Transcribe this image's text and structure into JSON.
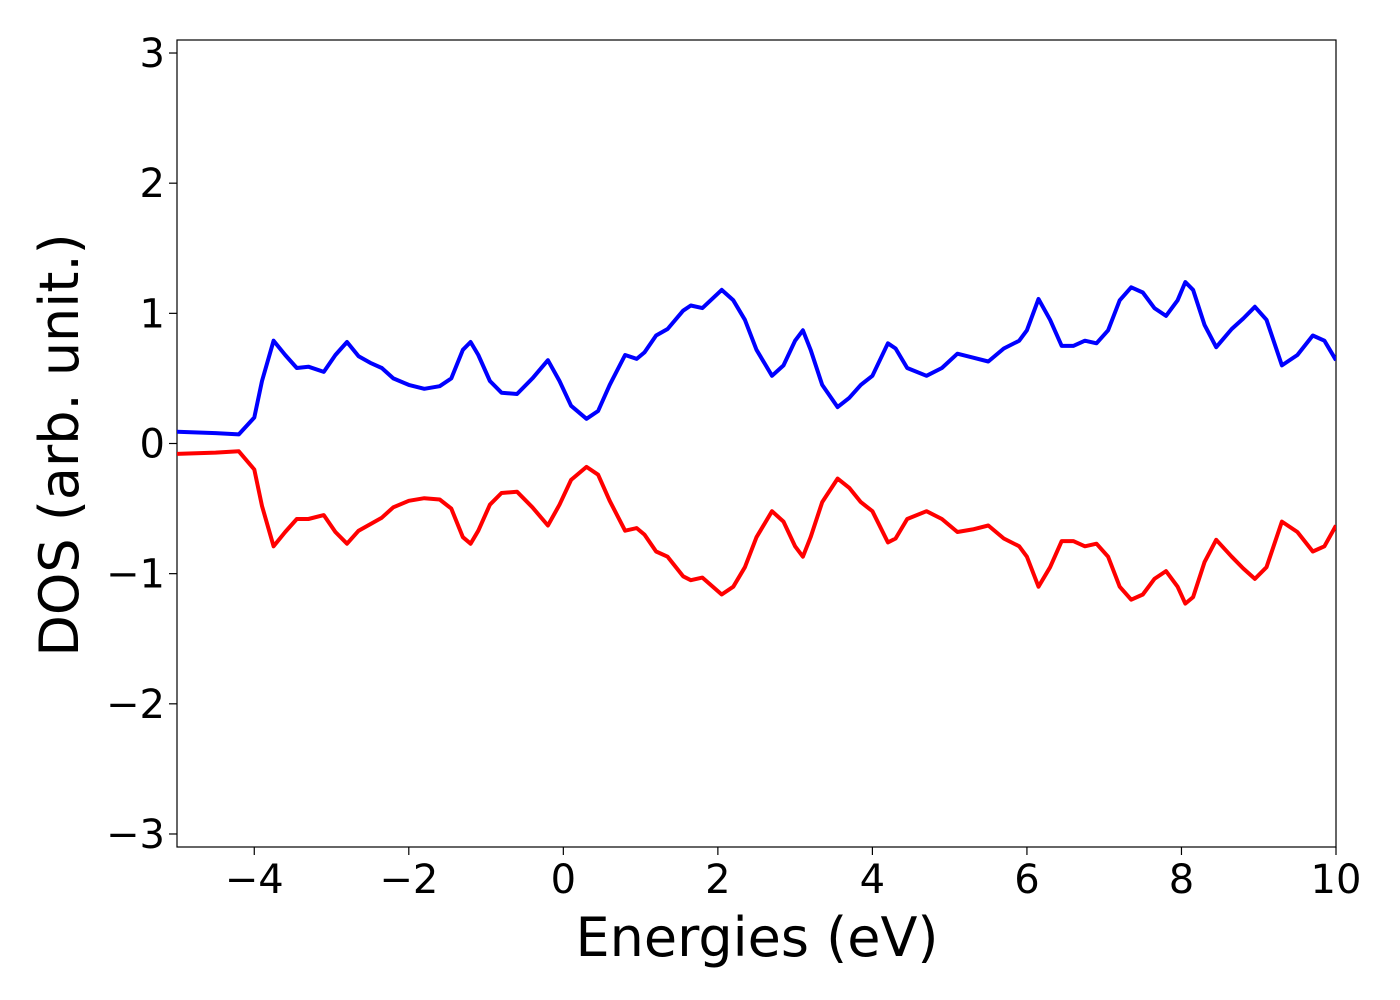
{
  "chart_data": {
    "type": "line",
    "xlabel": "Energies (eV)",
    "ylabel": "DOS (arb. unit.)",
    "x": [
      -5,
      -4.5,
      -4.2,
      -4.0,
      -3.9,
      -3.75,
      -3.6,
      -3.45,
      -3.3,
      -3.1,
      -2.95,
      -2.8,
      -2.65,
      -2.5,
      -2.35,
      -2.2,
      -2.0,
      -1.8,
      -1.6,
      -1.45,
      -1.3,
      -1.2,
      -1.1,
      -0.95,
      -0.8,
      -0.6,
      -0.4,
      -0.2,
      -0.05,
      0.1,
      0.3,
      0.45,
      0.6,
      0.8,
      0.95,
      1.05,
      1.2,
      1.35,
      1.55,
      1.65,
      1.8,
      2.05,
      2.2,
      2.35,
      2.5,
      2.7,
      2.85,
      3.0,
      3.1,
      3.2,
      3.35,
      3.55,
      3.7,
      3.85,
      4.0,
      4.2,
      4.3,
      4.45,
      4.7,
      4.9,
      5.1,
      5.3,
      5.5,
      5.7,
      5.9,
      6.0,
      6.15,
      6.3,
      6.45,
      6.6,
      6.75,
      6.9,
      7.05,
      7.2,
      7.35,
      7.5,
      7.65,
      7.8,
      7.95,
      8.05,
      8.15,
      8.3,
      8.45,
      8.65,
      8.8,
      8.95,
      9.1,
      9.3,
      9.5,
      9.7,
      9.85,
      10
    ],
    "series": [
      {
        "color": "#0000ff",
        "values": [
          0.09,
          0.08,
          0.07,
          0.2,
          0.48,
          0.79,
          0.68,
          0.58,
          0.59,
          0.55,
          0.68,
          0.78,
          0.67,
          0.62,
          0.58,
          0.5,
          0.45,
          0.42,
          0.44,
          0.5,
          0.72,
          0.78,
          0.68,
          0.48,
          0.39,
          0.38,
          0.5,
          0.64,
          0.48,
          0.29,
          0.19,
          0.25,
          0.45,
          0.68,
          0.65,
          0.7,
          0.83,
          0.88,
          1.02,
          1.06,
          1.04,
          1.18,
          1.1,
          0.95,
          0.72,
          0.52,
          0.6,
          0.79,
          0.87,
          0.72,
          0.45,
          0.28,
          0.35,
          0.45,
          0.52,
          0.77,
          0.73,
          0.58,
          0.52,
          0.58,
          0.69,
          0.66,
          0.63,
          0.73,
          0.79,
          0.87,
          1.11,
          0.95,
          0.75,
          0.75,
          0.79,
          0.77,
          0.87,
          1.1,
          1.2,
          1.16,
          1.04,
          0.98,
          1.1,
          1.24,
          1.18,
          0.91,
          0.74,
          0.88,
          0.96,
          1.05,
          0.95,
          0.6,
          0.68,
          0.83,
          0.79,
          0.64
        ]
      },
      {
        "color": "#ff0000",
        "values": [
          -0.08,
          -0.07,
          -0.06,
          -0.2,
          -0.48,
          -0.79,
          -0.68,
          -0.58,
          -0.58,
          -0.55,
          -0.68,
          -0.77,
          -0.67,
          -0.62,
          -0.57,
          -0.49,
          -0.44,
          -0.42,
          -0.43,
          -0.5,
          -0.72,
          -0.77,
          -0.67,
          -0.47,
          -0.38,
          -0.37,
          -0.49,
          -0.63,
          -0.47,
          -0.28,
          -0.18,
          -0.24,
          -0.44,
          -0.67,
          -0.65,
          -0.7,
          -0.83,
          -0.87,
          -1.02,
          -1.05,
          -1.03,
          -1.16,
          -1.1,
          -0.95,
          -0.72,
          -0.52,
          -0.6,
          -0.79,
          -0.87,
          -0.72,
          -0.45,
          -0.27,
          -0.34,
          -0.45,
          -0.52,
          -0.76,
          -0.73,
          -0.58,
          -0.52,
          -0.58,
          -0.68,
          -0.66,
          -0.63,
          -0.73,
          -0.79,
          -0.87,
          -1.1,
          -0.95,
          -0.75,
          -0.75,
          -0.79,
          -0.77,
          -0.87,
          -1.1,
          -1.2,
          -1.16,
          -1.04,
          -0.98,
          -1.1,
          -1.23,
          -1.18,
          -0.91,
          -0.74,
          -0.87,
          -0.96,
          -1.04,
          -0.95,
          -0.6,
          -0.68,
          -0.83,
          -0.79,
          -0.63
        ]
      }
    ],
    "xlim": [
      -5,
      10
    ],
    "ylim": [
      -3.1,
      3.1
    ],
    "xticks": [
      {
        "value": -4,
        "label": "−4"
      },
      {
        "value": -2,
        "label": "−2"
      },
      0,
      2,
      4,
      6,
      8,
      10
    ],
    "yticks": [
      {
        "value": -3,
        "label": "−3"
      },
      {
        "value": -2,
        "label": "−2"
      },
      {
        "value": -1,
        "label": "−1"
      },
      0,
      1,
      2,
      3
    ],
    "grid": false
  }
}
